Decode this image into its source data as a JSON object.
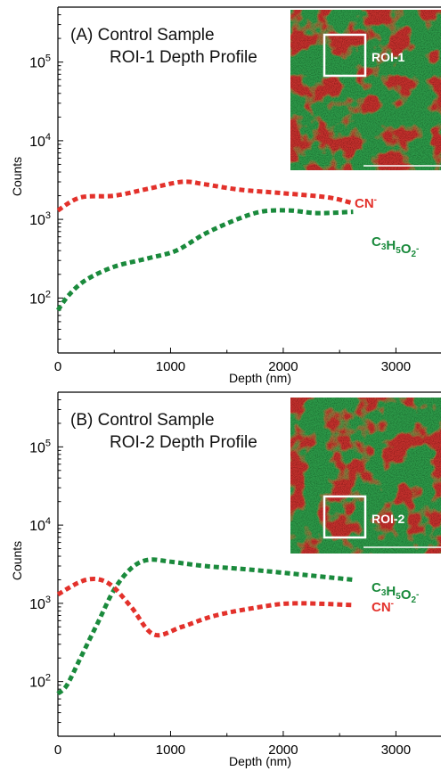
{
  "chart_data": [
    {
      "type": "line",
      "title": "(A) Control Sample",
      "subtitle": "ROI-1 Depth Profile",
      "xlabel": "Depth (nm)",
      "ylabel": "Counts",
      "xlim": [
        0,
        3400
      ],
      "ylim": [
        20,
        500000
      ],
      "yscale": "log",
      "grid": false,
      "line_style": "dotted",
      "xticks": [
        0,
        1000,
        2000,
        3000
      ],
      "xtick_labels": [
        "0",
        "1000",
        "2000",
        "3000"
      ],
      "yticks": [
        100,
        1000,
        10000,
        100000
      ],
      "ytick_labels": [
        {
          "base": "10",
          "exp": "2"
        },
        {
          "base": "10",
          "exp": "3"
        },
        {
          "base": "10",
          "exp": "4"
        },
        {
          "base": "10",
          "exp": "5"
        }
      ],
      "series": [
        {
          "name": "CN",
          "name_sup": "-",
          "name_sub": "",
          "color": "#e3312b",
          "x": [
            0,
            200,
            500,
            800,
            1100,
            1300,
            1600,
            2000,
            2400,
            2620
          ],
          "y": [
            1300,
            1900,
            2000,
            2450,
            3000,
            2800,
            2400,
            2150,
            1900,
            1600
          ]
        },
        {
          "name": "C3H5O2",
          "name_sup": "-",
          "name_sub": "",
          "color": "#1a8a3c",
          "x": [
            0,
            100,
            250,
            500,
            800,
            1050,
            1300,
            1550,
            1800,
            2050,
            2300,
            2620
          ],
          "y": [
            70,
            110,
            170,
            250,
            320,
            400,
            650,
            950,
            1250,
            1300,
            1200,
            1250
          ]
        }
      ],
      "inset": {
        "label": "ROI-1"
      }
    },
    {
      "type": "line",
      "title": "(B) Control Sample",
      "subtitle": "ROI-2 Depth Profile",
      "xlabel": "Depth (nm)",
      "ylabel": "Counts",
      "xlim": [
        0,
        3400
      ],
      "ylim": [
        20,
        500000
      ],
      "yscale": "log",
      "grid": false,
      "line_style": "dotted",
      "xticks": [
        0,
        1000,
        2000,
        3000
      ],
      "xtick_labels": [
        "0",
        "1000",
        "2000",
        "3000"
      ],
      "yticks": [
        100,
        1000,
        10000,
        100000
      ],
      "ytick_labels": [
        {
          "base": "10",
          "exp": "2"
        },
        {
          "base": "10",
          "exp": "3"
        },
        {
          "base": "10",
          "exp": "4"
        },
        {
          "base": "10",
          "exp": "5"
        }
      ],
      "series": [
        {
          "name": "C3H5O2",
          "name_sup": "-",
          "name_sub": "",
          "color": "#1a8a3c",
          "x": [
            0,
            80,
            200,
            350,
            500,
            650,
            800,
            1000,
            1300,
            1700,
            2200,
            2620
          ],
          "y": [
            70,
            90,
            200,
            550,
            1500,
            2800,
            3600,
            3400,
            3000,
            2700,
            2300,
            2000
          ]
        },
        {
          "name": "CN",
          "name_sup": "-",
          "name_sub": "",
          "color": "#e3312b",
          "x": [
            0,
            250,
            450,
            650,
            850,
            1100,
            1400,
            1800,
            2100,
            2620
          ],
          "y": [
            1300,
            2000,
            1800,
            900,
            400,
            500,
            700,
            900,
            1000,
            950
          ]
        }
      ],
      "inset": {
        "label": "ROI-2"
      }
    }
  ]
}
